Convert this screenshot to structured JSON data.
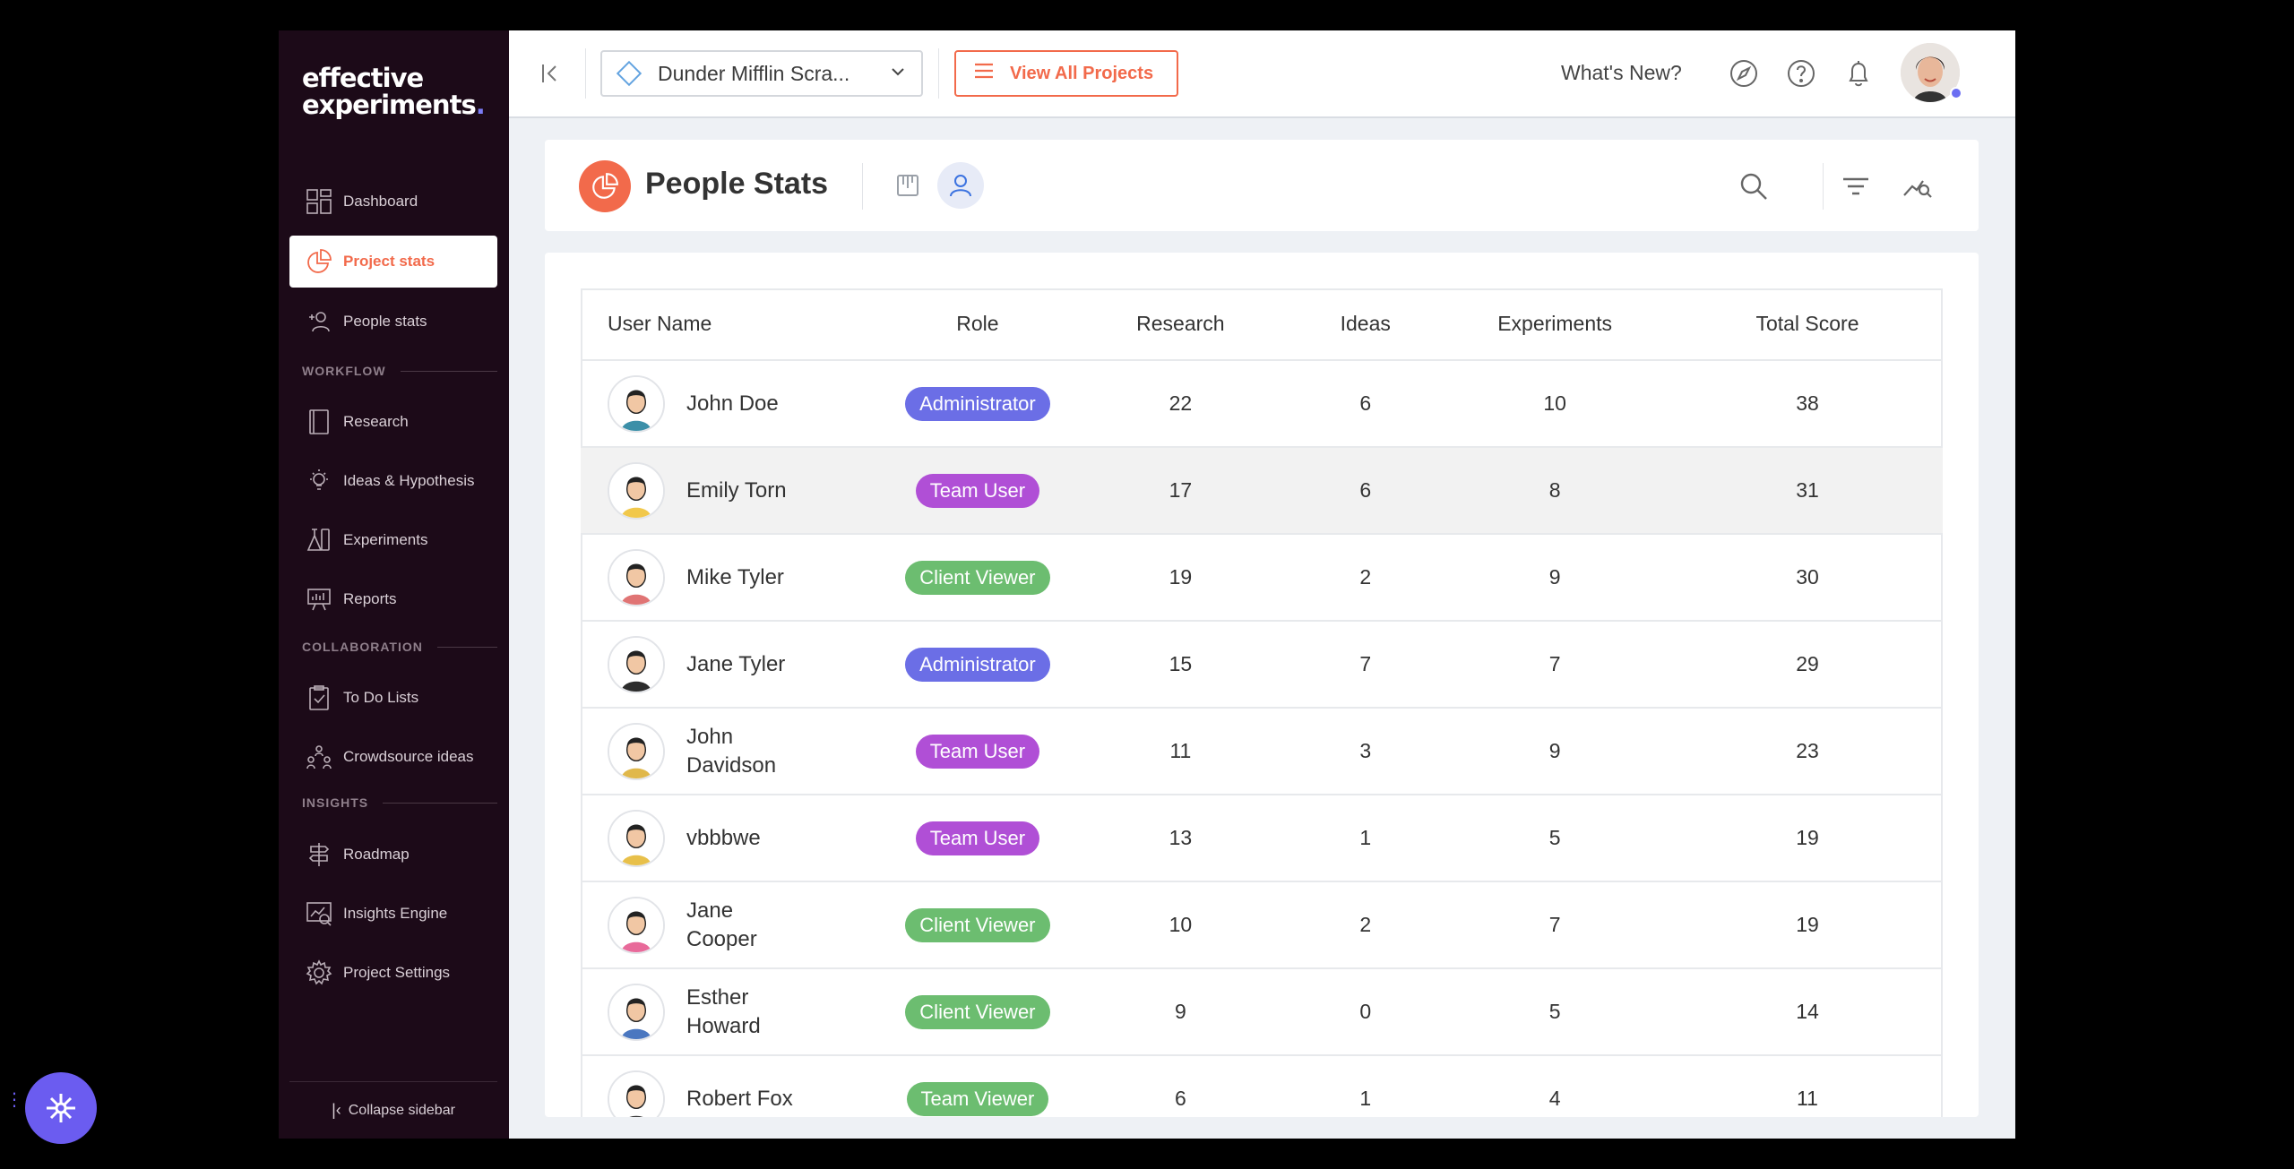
{
  "brand": {
    "line1": "effective",
    "line2": "experiments",
    "dot": "."
  },
  "sidebar": {
    "items": [
      {
        "label": "Dashboard",
        "icon": "grid-icon"
      },
      {
        "label": "Project stats",
        "icon": "pie-chart-icon",
        "active": true
      },
      {
        "label": "People stats",
        "icon": "person-add-icon"
      }
    ],
    "sections": [
      {
        "label": "WORKFLOW",
        "items": [
          {
            "label": "Research",
            "icon": "book-icon"
          },
          {
            "label": "Ideas & Hypothesis",
            "icon": "lightbulb-icon"
          },
          {
            "label": "Experiments",
            "icon": "flask-icon"
          },
          {
            "label": "Reports",
            "icon": "presentation-icon"
          }
        ]
      },
      {
        "label": "COLLABORATION",
        "items": [
          {
            "label": "To Do Lists",
            "icon": "clipboard-check-icon"
          },
          {
            "label": "Crowdsource ideas",
            "icon": "people-network-icon"
          }
        ]
      },
      {
        "label": "INSIGHTS",
        "items": [
          {
            "label": "Roadmap",
            "icon": "signpost-icon"
          },
          {
            "label": "Insights Engine",
            "icon": "insights-icon"
          },
          {
            "label": "Project Settings",
            "icon": "gear-icon"
          }
        ]
      }
    ],
    "collapse_label": "Collapse sidebar"
  },
  "topbar": {
    "project": "Dunder Mifflin Scra...",
    "view_all": "View All Projects",
    "whats_new": "What's New?"
  },
  "page": {
    "title": "People Stats"
  },
  "table": {
    "columns": [
      "User Name",
      "Role",
      "Research",
      "Ideas",
      "Experiments",
      "Total Score"
    ],
    "rows": [
      {
        "name": "John Doe",
        "role": "Administrator",
        "role_type": "admin",
        "research": "22",
        "ideas": "6",
        "experiments": "10",
        "total": "38"
      },
      {
        "name": "Emily Torn",
        "role": "Team User",
        "role_type": "team",
        "research": "17",
        "ideas": "6",
        "experiments": "8",
        "total": "31"
      },
      {
        "name": "Mike Tyler",
        "role": "Client Viewer",
        "role_type": "client",
        "research": "19",
        "ideas": "2",
        "experiments": "9",
        "total": "30"
      },
      {
        "name": "Jane Tyler",
        "role": "Administrator",
        "role_type": "admin",
        "research": "15",
        "ideas": "7",
        "experiments": "7",
        "total": "29"
      },
      {
        "name": "John Davidson",
        "role": "Team User",
        "role_type": "team",
        "research": "11",
        "ideas": "3",
        "experiments": "9",
        "total": "23"
      },
      {
        "name": "vbbbwe",
        "role": "Team User",
        "role_type": "team",
        "research": "13",
        "ideas": "1",
        "experiments": "5",
        "total": "19"
      },
      {
        "name": "Jane Cooper",
        "role": "Client Viewer",
        "role_type": "client",
        "research": "10",
        "ideas": "2",
        "experiments": "7",
        "total": "19"
      },
      {
        "name": "Esther Howard",
        "role": "Client Viewer",
        "role_type": "client",
        "research": "9",
        "ideas": "0",
        "experiments": "5",
        "total": "14"
      },
      {
        "name": "Robert Fox",
        "role": "Team Viewer",
        "role_type": "client",
        "research": "6",
        "ideas": "1",
        "experiments": "4",
        "total": "11"
      }
    ]
  },
  "colors": {
    "accent": "#f26a4b",
    "sidebar_bg": "#1c0a18",
    "admin": "#6b6ee6",
    "team": "#b04fd6",
    "client": "#6cbd70"
  }
}
